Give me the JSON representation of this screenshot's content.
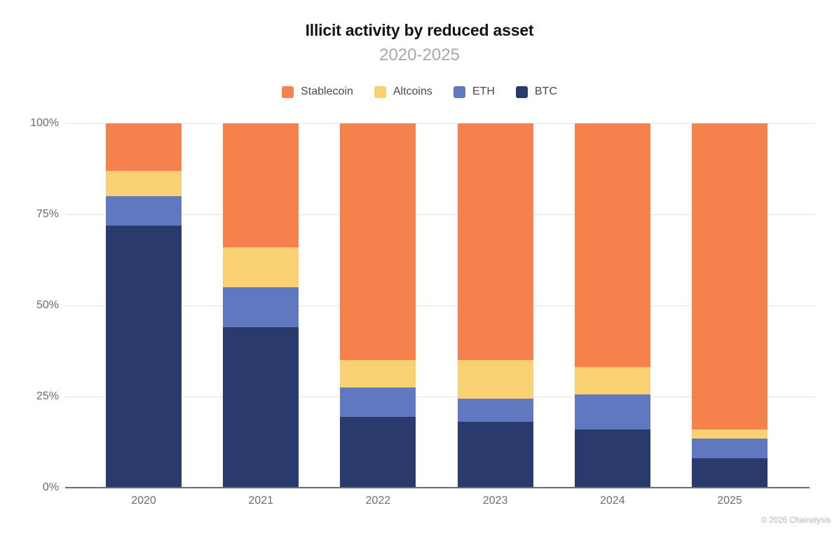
{
  "footer": {
    "copyright": "© 2026 Chainalysis"
  },
  "chart_data": {
    "type": "bar",
    "stacked": true,
    "title": "Illicit activity by reduced asset",
    "subtitle": "2020-2025",
    "categories": [
      "2020",
      "2021",
      "2022",
      "2023",
      "2024",
      "2025"
    ],
    "series": [
      {
        "name": "Stablecoin",
        "color": "#F5824D",
        "values": [
          13,
          34,
          65,
          65,
          67,
          84
        ]
      },
      {
        "name": "Altcoins",
        "color": "#FAD172",
        "values": [
          7,
          11,
          7.5,
          10.5,
          7.5,
          2.5
        ]
      },
      {
        "name": "ETH",
        "color": "#5F78C0",
        "values": [
          8,
          11,
          8,
          6.5,
          9.5,
          5.5
        ]
      },
      {
        "name": "BTC",
        "color": "#2A3A6D",
        "values": [
          72,
          44,
          19.5,
          18,
          16,
          8
        ]
      }
    ],
    "stack_order_bottom_to_top": [
      "BTC",
      "ETH",
      "Altcoins",
      "Stablecoin"
    ],
    "unit": "%",
    "ylim": [
      0,
      100
    ],
    "yticks": [
      {
        "label": "0%",
        "value": 0
      },
      {
        "label": "25%",
        "value": 25
      },
      {
        "label": "50%",
        "value": 50
      },
      {
        "label": "75%",
        "value": 75
      },
      {
        "label": "100%",
        "value": 100
      }
    ],
    "legend_position": "top",
    "grid": true,
    "colors": {
      "title": "#141414",
      "subtitle": "#a8a8ab",
      "gridline": "#e4e4e4",
      "axis_line": "#6e6e6e",
      "tick_label": "#696969"
    }
  }
}
